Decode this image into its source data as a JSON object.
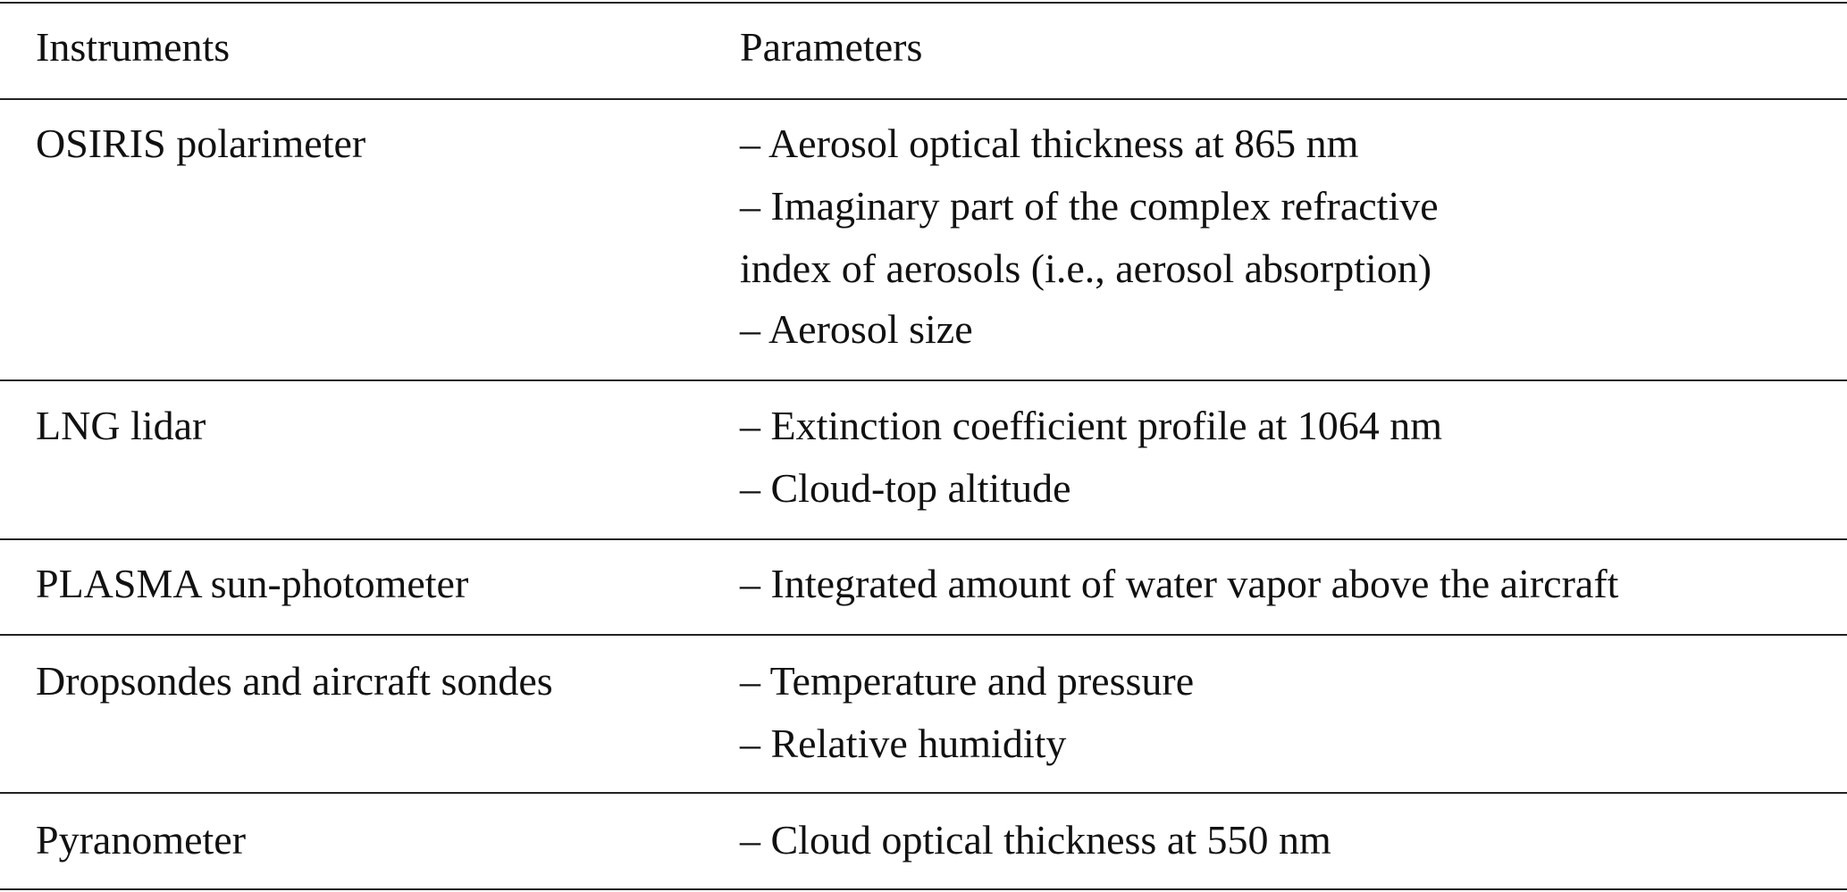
{
  "table": {
    "headers": [
      "Instruments",
      "Parameters"
    ],
    "rows": [
      {
        "instrument": "OSIRIS polarimeter",
        "parameters": [
          "– Aerosol optical thickness at 865 nm",
          "– Imaginary part of the complex refractive",
          "index of aerosols (i.e., aerosol absorption)",
          "– Aerosol size"
        ]
      },
      {
        "instrument": "LNG lidar",
        "parameters": [
          "– Extinction coefficient profile at 1064 nm",
          "– Cloud-top altitude"
        ]
      },
      {
        "instrument": "PLASMA sun-photometer",
        "parameters": [
          "– Integrated amount of water vapor above the aircraft"
        ]
      },
      {
        "instrument": "Dropsondes and aircraft sondes",
        "parameters": [
          "– Temperature and pressure",
          "– Relative humidity"
        ]
      },
      {
        "instrument": "Pyranometer",
        "parameters": [
          "– Cloud optical thickness at 550 nm"
        ]
      }
    ]
  }
}
